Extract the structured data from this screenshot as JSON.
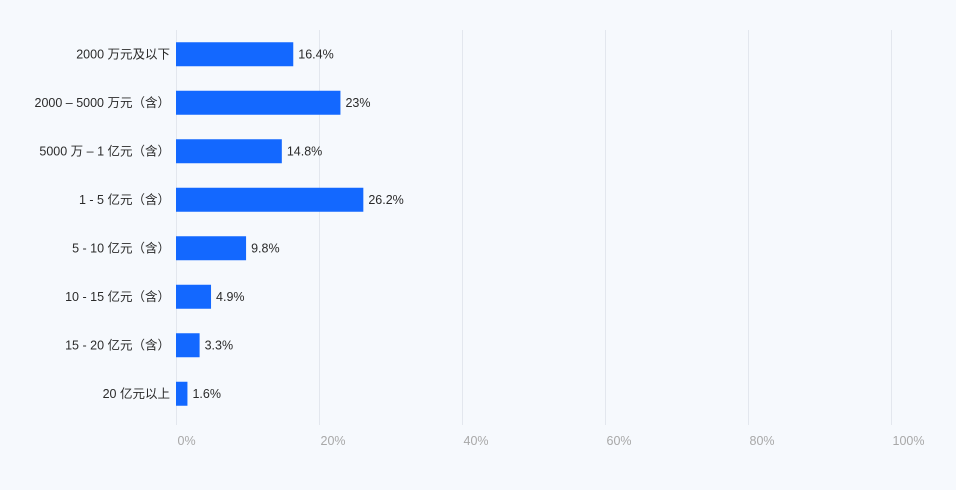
{
  "colors": {
    "background": "#f6f9fd",
    "bar": "#1368ff",
    "grid": "#e3e7ee",
    "label_text": "#2b2b2b",
    "tick_text": "#a8a8a8"
  },
  "chart_data": {
    "type": "bar",
    "orientation": "horizontal",
    "categories": [
      "2000 万元及以下",
      "2000 – 5000 万元（含）",
      "5000 万 – 1 亿元（含）",
      "1 - 5 亿元（含）",
      "5 - 10 亿元（含）",
      "10 - 15 亿元（含）",
      "15 - 20 亿元（含）",
      "20 亿元以上"
    ],
    "values": [
      16.4,
      23,
      14.8,
      26.2,
      9.8,
      4.9,
      3.3,
      1.6
    ],
    "value_labels": [
      "16.4%",
      "23%",
      "14.8%",
      "26.2%",
      "9.8%",
      "4.9%",
      "3.3%",
      "1.6%"
    ],
    "xlim": [
      0,
      100
    ],
    "x_ticks": {
      "values": [
        0,
        20,
        40,
        60,
        80,
        100
      ],
      "labels": [
        "0%",
        "20%",
        "40%",
        "60%",
        "80%",
        "100%"
      ]
    },
    "grid": true,
    "legend": "none"
  }
}
